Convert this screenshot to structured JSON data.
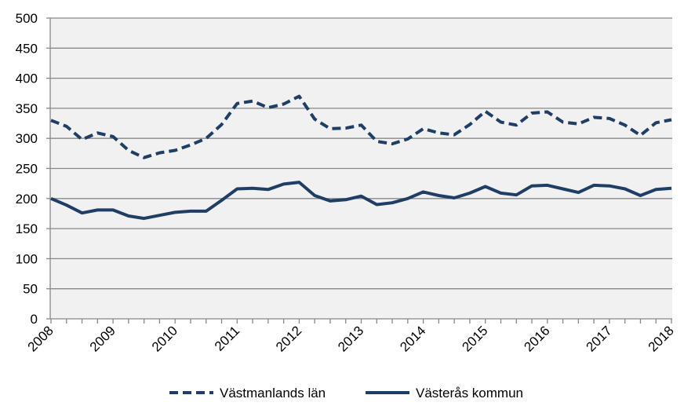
{
  "chart_data": {
    "type": "line",
    "title": "",
    "xlabel": "",
    "ylabel": "",
    "ylim": [
      0,
      500
    ],
    "y_ticks": [
      0,
      50,
      100,
      150,
      200,
      250,
      300,
      350,
      400,
      450,
      500
    ],
    "x_tick_labels": [
      "2008",
      "2009",
      "2010",
      "2011",
      "2012",
      "2013",
      "2014",
      "2015",
      "2016",
      "2017",
      "2018"
    ],
    "x_tick_rotation": -45,
    "plot_background": "#f1f1f1",
    "grid": true,
    "grid_axis": "y",
    "grid_color": "#888888",
    "legend_position": "bottom",
    "series": [
      {
        "name": "Västmanlands län",
        "style": "dashed",
        "color": "#1f3e66",
        "x": [
          2008.0,
          2008.25,
          2008.5,
          2008.75,
          2009.0,
          2009.25,
          2009.5,
          2009.75,
          2010.0,
          2010.25,
          2010.5,
          2010.75,
          2011.0,
          2011.25,
          2011.5,
          2011.75,
          2012.0,
          2012.25,
          2012.5,
          2012.75,
          2013.0,
          2013.25,
          2013.5,
          2013.75,
          2014.0,
          2014.25,
          2014.5,
          2014.75,
          2015.0,
          2015.25,
          2015.5,
          2015.75,
          2016.0,
          2016.25,
          2016.5,
          2016.75,
          2017.0,
          2017.25,
          2017.5,
          2017.75,
          2018.0
        ],
        "values": [
          330,
          320,
          298,
          309,
          303,
          280,
          268,
          276,
          280,
          289,
          300,
          323,
          358,
          362,
          351,
          357,
          370,
          332,
          316,
          317,
          322,
          295,
          291,
          299,
          316,
          309,
          306,
          323,
          345,
          327,
          322,
          342,
          344,
          327,
          324,
          335,
          333,
          322,
          305,
          326,
          331
        ]
      },
      {
        "name": "Västerås kommun",
        "style": "solid",
        "color": "#1f3e66",
        "x": [
          2008.0,
          2008.25,
          2008.5,
          2008.75,
          2009.0,
          2009.25,
          2009.5,
          2009.75,
          2010.0,
          2010.25,
          2010.5,
          2010.75,
          2011.0,
          2011.25,
          2011.5,
          2011.75,
          2012.0,
          2012.25,
          2012.5,
          2012.75,
          2013.0,
          2013.25,
          2013.5,
          2013.75,
          2014.0,
          2014.25,
          2014.5,
          2014.75,
          2015.0,
          2015.25,
          2015.5,
          2015.75,
          2016.0,
          2016.25,
          2016.5,
          2016.75,
          2017.0,
          2017.25,
          2017.5,
          2017.75,
          2018.0
        ],
        "values": [
          200,
          189,
          176,
          181,
          181,
          171,
          167,
          172,
          177,
          179,
          179,
          197,
          216,
          217,
          215,
          224,
          227,
          205,
          196,
          198,
          204,
          190,
          193,
          200,
          211,
          205,
          201,
          209,
          220,
          209,
          206,
          221,
          222,
          216,
          210,
          222,
          221,
          216,
          205,
          215,
          217
        ]
      }
    ]
  }
}
